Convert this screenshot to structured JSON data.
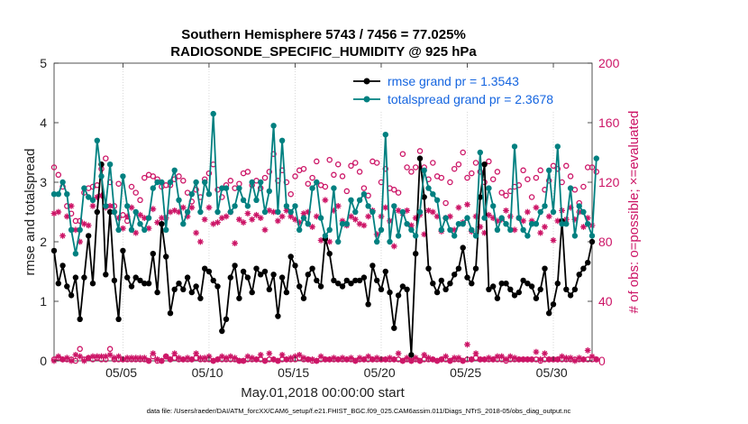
{
  "chart_data": {
    "type": "line",
    "title_line1": "Southern Hemisphere 5743 / 7456 = 77.025%",
    "title_line2": "RADIOSONDE_SPECIFIC_HUMIDITY @ 925 hPa",
    "xlabel": "May.01,2018 00:00:00 start",
    "ylabel": "rmse and totalspread",
    "y2label": "# of obs: o=possible; ×=evaluated",
    "xlim": [
      1,
      32.25
    ],
    "ylim": [
      0,
      5
    ],
    "y2lim": [
      0,
      200
    ],
    "x_ticks": [
      5,
      10,
      15,
      20,
      25,
      30
    ],
    "x_tick_labels": [
      "05/05",
      "05/10",
      "05/15",
      "05/20",
      "05/25",
      "05/30"
    ],
    "y_ticks": [
      "0",
      "1",
      "2",
      "3",
      "4",
      "5"
    ],
    "y2_ticks": [
      "0",
      "40",
      "80",
      "120",
      "160",
      "200"
    ],
    "legend": {
      "rmse": "rmse grand pr = 1.3543",
      "spread": "totalspread grand pr = 2.3678"
    },
    "colors": {
      "rmse": "#000000",
      "spread": "#008080",
      "obs": "#cc1466",
      "legend_text": "#1565e0"
    },
    "series": [
      {
        "name": "rmse",
        "values": [
          1.85,
          1.3,
          1.6,
          1.25,
          1.1,
          1.4,
          0.7,
          1.4,
          2.1,
          1.3,
          2.5,
          3.3,
          1.45,
          2.5,
          1.35,
          0.7,
          1.85,
          1.4,
          1.25,
          1.4,
          1.35,
          1.3,
          1.3,
          1.8,
          1.15,
          2.3,
          1.75,
          0.8,
          1.2,
          1.3,
          1.2,
          1.4,
          1.15,
          1.25,
          1.05,
          1.55,
          1.5,
          1.35,
          1.25,
          0.5,
          0.7,
          1.4,
          1.6,
          1.05,
          1.5,
          1.4,
          1.15,
          1.55,
          1.45,
          1.5,
          1.2,
          1.45,
          0.75,
          1.4,
          1.15,
          1.75,
          1.6,
          1.25,
          1.05,
          1.45,
          1.55,
          1.35,
          1.25,
          2.05,
          1.8,
          1.35,
          1.3,
          1.25,
          1.35,
          1.3,
          1.35,
          1.35,
          1.4,
          0.95,
          1.6,
          1.35,
          1.2,
          1.5,
          1.15,
          0.55,
          1.1,
          1.25,
          1.2,
          0.1,
          1.8,
          3.4,
          2.75,
          1.55,
          1.3,
          1.15,
          1.35,
          1.2,
          1.3,
          1.45,
          1.55,
          1.9,
          1.4,
          1.3,
          1.55,
          2.75,
          3.3,
          1.2,
          1.25,
          1.05,
          1.3,
          1.3,
          1.2,
          1.1,
          1.15,
          1.35,
          1.3,
          1.25,
          1.05,
          1.2,
          1.55,
          0.8,
          0.95,
          1.3,
          2.35,
          1.2,
          1.1,
          1.2,
          1.45,
          1.55,
          1.65,
          2.0
        ]
      },
      {
        "name": "totalspread",
        "values": [
          2.8,
          2.8,
          3.0,
          2.8,
          2.2,
          1.8,
          2.2,
          2.9,
          2.75,
          2.7,
          3.7,
          3.1,
          2.6,
          3.3,
          2.5,
          2.2,
          3.1,
          2.6,
          2.2,
          2.5,
          2.3,
          2.2,
          2.4,
          2.9,
          3.0,
          3.0,
          2.2,
          3.0,
          3.2,
          2.7,
          2.3,
          2.5,
          2.8,
          3.0,
          2.5,
          3.0,
          2.8,
          4.15,
          2.5,
          2.9,
          2.9,
          2.5,
          2.6,
          2.9,
          2.7,
          2.6,
          3.0,
          2.7,
          3.0,
          2.5,
          2.85,
          3.95,
          2.5,
          3.7,
          2.6,
          2.5,
          2.6,
          2.2,
          2.4,
          2.3,
          2.9,
          3.0,
          2.4,
          2.1,
          2.2,
          2.9,
          2.0,
          2.3,
          2.3,
          2.7,
          2.5,
          2.7,
          2.8,
          2.6,
          2.5,
          2.0,
          2.2,
          3.8,
          2.0,
          2.6,
          2.1,
          2.5,
          2.3,
          2.2,
          2.1,
          2.5,
          3.2,
          2.9,
          2.8,
          2.7,
          2.2,
          2.4,
          2.2,
          2.1,
          2.3,
          2.3,
          2.4,
          2.2,
          2.1,
          3.5,
          2.4,
          2.9,
          2.6,
          2.2,
          2.4,
          2.3,
          2.2,
          3.6,
          2.4,
          2.2,
          2.1,
          2.3,
          2.3,
          2.5,
          2.6,
          3.2,
          2.5,
          3.6,
          2.3,
          2.3,
          2.9,
          2.1,
          2.6,
          2.5,
          2.3,
          2.1,
          3.4
        ]
      },
      {
        "name": "obs_possible",
        "values": [
          130,
          125,
          117,
          104,
          99,
          94,
          94,
          113,
          116,
          117,
          118,
          129,
          136,
          120,
          104,
          119,
          98,
          94,
          117,
          113,
          108,
          123,
          125,
          124,
          122,
          117,
          118,
          118,
          122,
          124,
          121,
          113,
          107,
          115,
          110,
          122,
          126,
          132,
          115,
          110,
          118,
          121,
          116,
          119,
          126,
          127,
          118,
          121,
          116,
          123,
          127,
          139,
          121,
          128,
          120,
          112,
          124,
          128,
          129,
          119,
          123,
          134,
          118,
          117,
          135,
          125,
          132,
          124,
          114,
          131,
          133,
          127,
          116,
          111,
          134,
          133,
          120,
          129,
          116,
          115,
          113,
          139,
          130,
          127,
          130,
          141,
          130,
          122,
          133,
          124,
          123,
          106,
          120,
          129,
          132,
          140,
          123,
          126,
          133,
          127,
          120,
          134,
          122,
          127,
          113,
          111,
          114,
          117,
          118,
          128,
          122,
          110,
          123,
          128,
          115,
          121,
          131,
          129,
          120,
          131,
          124,
          115,
          106,
          117,
          130,
          130,
          127
        ]
      },
      {
        "name": "obs_evaluated",
        "values": [
          99,
          100,
          84,
          97,
          104,
          88,
          80,
          92,
          91,
          104,
          110,
          111,
          103,
          104,
          100,
          96,
          89,
          97,
          103,
          86,
          98,
          96,
          89,
          102,
          93,
          96,
          96,
          100,
          101,
          100,
          103,
          97,
          103,
          86,
          80,
          95,
          103,
          92,
          93,
          96,
          97,
          100,
          79,
          95,
          93,
          99,
          95,
          98,
          96,
          88,
          101,
          100,
          94,
          97,
          101,
          97,
          95,
          93,
          99,
          100,
          90,
          97,
          81,
          108,
          80,
          101,
          104,
          94,
          91,
          97,
          95,
          92,
          91,
          97,
          101,
          85,
          97,
          103,
          94,
          77,
          101,
          99,
          101,
          91,
          96,
          98,
          85,
          101,
          100,
          97,
          87,
          96,
          97,
          88,
          103,
          93,
          105,
          87,
          97,
          90,
          86,
          98,
          96,
          94,
          95,
          101,
          97,
          88,
          96,
          94,
          100,
          94,
          103,
          86,
          90,
          97,
          81,
          94,
          101,
          95,
          103,
          95,
          100,
          90,
          96,
          91
        ]
      },
      {
        "name": "obs_low_possible",
        "values": [
          1,
          2,
          1,
          1,
          1,
          0,
          8,
          1,
          2,
          1,
          2,
          1,
          1,
          8,
          1,
          1,
          1,
          1,
          1,
          1,
          1,
          1,
          0,
          3,
          0,
          0,
          3,
          1,
          2,
          1,
          1,
          1,
          1,
          2,
          1,
          1,
          1,
          0,
          1,
          1,
          1,
          1,
          1,
          0,
          0,
          1,
          1,
          1,
          1,
          0,
          1,
          1,
          0,
          1,
          1,
          1,
          1,
          2,
          1,
          1,
          0,
          0,
          1,
          1,
          1,
          1,
          1,
          1,
          1,
          1,
          0,
          1,
          1,
          1,
          1,
          1,
          1,
          1,
          1,
          1,
          1,
          0,
          1,
          0,
          1,
          0,
          1,
          1,
          1,
          0,
          1,
          1,
          0,
          1,
          1,
          0,
          1,
          1,
          2,
          1,
          1,
          1,
          1,
          1,
          1,
          0,
          1,
          1,
          1,
          1,
          1,
          1,
          1,
          0,
          1,
          1,
          1,
          1,
          1,
          1,
          1,
          1,
          1,
          1,
          1,
          1,
          1
        ]
      },
      {
        "name": "obs_low_evaluated",
        "values": [
          0,
          3,
          1,
          2,
          0,
          4,
          3,
          0,
          2,
          3,
          3,
          3,
          3,
          4,
          2,
          3,
          1,
          2,
          2,
          2,
          2,
          2,
          0,
          5,
          1,
          0,
          3,
          1,
          5,
          2,
          1,
          2,
          1,
          5,
          2,
          2,
          3,
          0,
          1,
          3,
          2,
          3,
          2,
          0,
          0,
          3,
          2,
          1,
          4,
          0,
          5,
          1,
          0,
          4,
          1,
          2,
          3,
          4,
          2,
          1,
          1,
          0,
          3,
          1,
          1,
          2,
          1,
          2,
          1,
          2,
          0,
          2,
          1,
          3,
          1,
          2,
          1,
          1,
          2,
          1,
          5,
          0,
          2,
          0,
          2,
          0,
          4,
          2,
          1,
          0,
          1,
          3,
          0,
          2,
          2,
          0,
          11,
          1,
          5,
          1,
          1,
          2,
          1,
          3,
          3,
          1,
          3,
          2,
          1,
          1,
          1,
          1,
          6,
          1,
          5,
          1,
          1,
          1,
          3,
          2,
          2,
          0,
          2,
          1,
          7,
          3,
          1
        ]
      }
    ],
    "footer": "data file: /Users/raeder/DAI/ATM_forcXX/CAM6_setup/f.e21.FHIST_BGC.f09_025.CAM6assim.011/Diags_NTrS_2018-05/obs_diag_output.nc"
  }
}
